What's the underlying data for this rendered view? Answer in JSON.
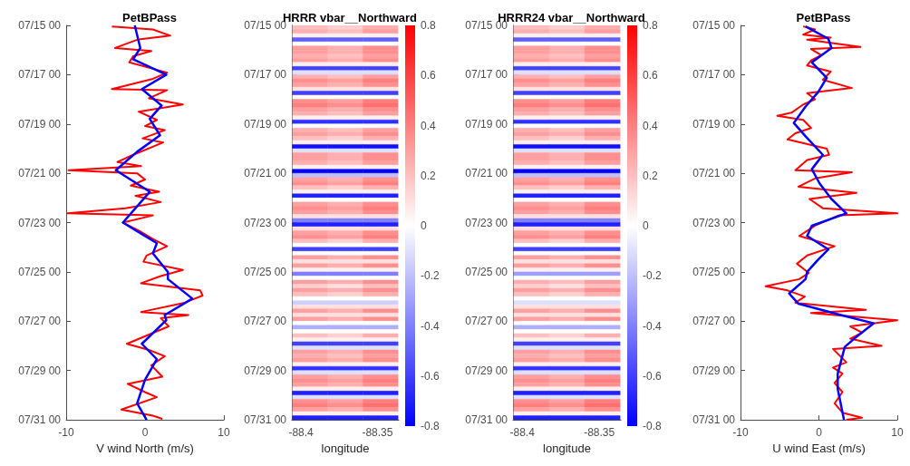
{
  "chart_data": [
    {
      "type": "line",
      "orientation": "horizontal",
      "title": "PetBPass",
      "xlabel": "V wind North (m/s)",
      "xlim": [
        -10,
        10
      ],
      "xticks": [
        -10,
        0,
        10
      ],
      "ylim": [
        "--07-31T00:00",
        "--07-15T00:00"
      ],
      "yticks": [
        {
          "value": "--07-15T00:00",
          "label": "07/15 00"
        },
        {
          "value": "--07-17T00:00",
          "label": "07/17 00"
        },
        {
          "value": "--07-19T00:00",
          "label": "07/19 00"
        },
        {
          "value": "--07-21T00:00",
          "label": "07/21 00"
        },
        {
          "value": "--07-23T00:00",
          "label": "07/23 00"
        },
        {
          "value": "--07-25T00:00",
          "label": "07/25 00"
        },
        {
          "value": "--07-27T00:00",
          "label": "07/27 00"
        },
        {
          "value": "--07-29T00:00",
          "label": "07/29 00"
        },
        {
          "value": "--07-31T00:00",
          "label": "07/31 00"
        }
      ],
      "series": [
        {
          "color": "#ff0000",
          "x": [
            "--07-15T01:00",
            "--07-15T04:00",
            "--07-15T10:00",
            "--07-15T14:00",
            "--07-15T22:00",
            "--07-16T01:00",
            "--07-16T06:00",
            "--07-16T12:00",
            "--07-16T22:00",
            "--07-17T04:00",
            "--07-17T14:00",
            "--07-17T15:00",
            "--07-17T23:00",
            "--07-18T05:00",
            "--07-18T12:00",
            "--07-18T20:00",
            "--07-19T02:00",
            "--07-19T06:00",
            "--07-19T14:00",
            "--07-19T18:00",
            "--07-20T06:00",
            "--07-20T13:00",
            "--07-20T17:00",
            "--07-20T21:00",
            "--07-21T00:00",
            "--07-21T06:00",
            "--07-21T12:00",
            "--07-21T18:00",
            "--07-21T22:00",
            "--07-22T04:00",
            "--07-22T10:00",
            "--07-22T15:00",
            "--07-22T17:00",
            "--07-23T00:00",
            "--07-23T09:00",
            "--07-23T16:00",
            "--07-23T23:00",
            "--07-24T08:00",
            "--07-24T14:00",
            "--07-24T22:00",
            "--07-25T04:00",
            "--07-25T11:00",
            "--07-25T18:00",
            "--07-25T23:00",
            "--07-26T06:00",
            "--07-26T15:00",
            "--07-26T18:00",
            "--07-26T21:00",
            "--07-27T05:00",
            "--07-27T22:00",
            "--07-28T04:00",
            "--07-28T10:00",
            "--07-28T19:00",
            "--07-29T06:00",
            "--07-29T13:00",
            "--07-29T21:00",
            "--07-30T02:00",
            "--07-30T14:00",
            "--07-30T20:00",
            "--07-30T23:00"
          ],
          "values": [
            -4.2,
            1.0,
            3.2,
            -1.0,
            -3.8,
            0.8,
            -1.5,
            -2.0,
            2.8,
            1.0,
            -4.2,
            2.8,
            0.5,
            4.8,
            -0.8,
            1.5,
            0.0,
            2.5,
            -0.3,
            2.3,
            -1.5,
            -3.5,
            -0.5,
            -9.7,
            -1.0,
            0.0,
            -1.8,
            1.8,
            -1.2,
            2.0,
            -2.5,
            -9.8,
            1.0,
            -2.8,
            -0.5,
            1.0,
            2.8,
            0.2,
            -0.2,
            4.8,
            2.0,
            -0.5,
            7.0,
            7.3,
            5.0,
            -0.5,
            5.5,
            2.0,
            3.0,
            -2.3,
            0.5,
            2.5,
            0.8,
            2.2,
            -2.2,
            0.0,
            1.5,
            -3.0,
            1.0,
            2.2
          ]
        },
        {
          "color": "#0000ff",
          "x": [
            "--07-15T00:00",
            "--07-15T22:00",
            "--07-16T09:00",
            "--07-17T00:00",
            "--07-17T14:00",
            "--07-18T06:00",
            "--07-18T19:00",
            "--07-19T11:00",
            "--07-20T03:00",
            "--07-20T21:00",
            "--07-21T18:00",
            "--07-23T00:00",
            "--07-23T20:00",
            "--07-24T06:00",
            "--07-25T00:00",
            "--07-25T07:00",
            "--07-26T02:00",
            "--07-26T18:00",
            "--07-26T23:00",
            "--07-27T22:00",
            "--07-28T13:00",
            "--07-29T09:00",
            "--07-30T08:00",
            "--07-31T00:00"
          ],
          "values": [
            -1.3,
            -0.6,
            -1.5,
            2.7,
            -0.4,
            2.1,
            0.6,
            1.9,
            -1.0,
            -3.7,
            0.6,
            -2.8,
            1.5,
            1.0,
            2.9,
            2.9,
            6.0,
            2.5,
            2.7,
            -0.4,
            1.5,
            0.0,
            -1.0,
            0.2
          ]
        }
      ]
    },
    {
      "type": "heatmap",
      "title": "HRRR vbar__Northward",
      "xlabel": "longitude",
      "xlim": [
        -88.406,
        -88.336
      ],
      "xticks": [
        -88.4,
        -88.35
      ],
      "ylim": [
        "--07-31T00:00",
        "--07-15T00:00"
      ],
      "yticks": [
        {
          "value": "--07-15T00:00",
          "label": "07/15 00"
        },
        {
          "value": "--07-17T00:00",
          "label": "07/17 00"
        },
        {
          "value": "--07-19T00:00",
          "label": "07/19 00"
        },
        {
          "value": "--07-21T00:00",
          "label": "07/21 00"
        },
        {
          "value": "--07-23T00:00",
          "label": "07/23 00"
        },
        {
          "value": "--07-25T00:00",
          "label": "07/25 00"
        },
        {
          "value": "--07-27T00:00",
          "label": "07/27 00"
        },
        {
          "value": "--07-29T00:00",
          "label": "07/29 00"
        },
        {
          "value": "--07-31T00:00",
          "label": "07/31 00"
        }
      ],
      "x": [
        -88.394,
        -88.371,
        -88.348
      ],
      "clim": [
        -0.8,
        0.8
      ],
      "cticks": [
        -0.8,
        -0.6,
        -0.4,
        -0.2,
        0,
        0.2,
        0.4,
        0.6,
        0.8
      ],
      "cells": [
        [
          0.2,
          0.15,
          0.25
        ],
        [
          0.25,
          0.2,
          0.3
        ],
        [
          0.05,
          0.05,
          0.05
        ],
        [
          -0.5,
          -0.5,
          -0.5
        ],
        [
          0,
          0,
          0
        ],
        [
          0.3,
          0.25,
          0.35
        ],
        [
          0.3,
          0.25,
          0.35
        ],
        [
          0.25,
          0.2,
          0.3
        ],
        [
          0.3,
          0.25,
          0.35
        ],
        [
          0.05,
          0.05,
          0.05
        ],
        [
          -0.6,
          -0.6,
          -0.6
        ],
        [
          -0.1,
          -0.1,
          -0.1
        ],
        [
          0.25,
          0.2,
          0.3
        ],
        [
          0.35,
          0.3,
          0.4
        ],
        [
          0.3,
          0.25,
          0.35
        ],
        [
          0.1,
          0.1,
          0.1
        ],
        [
          -0.6,
          -0.6,
          -0.6
        ],
        [
          0,
          0,
          0
        ],
        [
          0.35,
          0.3,
          0.4
        ],
        [
          0.4,
          0.35,
          0.45
        ],
        [
          0.3,
          0.25,
          0.35
        ],
        [
          0.25,
          0.2,
          0.3
        ],
        [
          0.05,
          0.05,
          0.05
        ],
        [
          -0.65,
          -0.65,
          -0.65
        ],
        [
          0,
          0,
          0
        ],
        [
          0.25,
          0.2,
          0.3
        ],
        [
          0.3,
          0.25,
          0.35
        ],
        [
          0.2,
          0.15,
          0.25
        ],
        [
          0.05,
          0.05,
          0.05
        ],
        [
          -0.75,
          -0.75,
          -0.75
        ],
        [
          -0.1,
          -0.1,
          -0.1
        ],
        [
          0.3,
          0.25,
          0.35
        ],
        [
          0.3,
          0.25,
          0.35
        ],
        [
          0.25,
          0.2,
          0.3
        ],
        [
          0.05,
          0.05,
          0.05
        ],
        [
          -0.8,
          -0.8,
          -0.8
        ],
        [
          -0.2,
          -0.2,
          -0.2
        ],
        [
          0.3,
          0.25,
          0.35
        ],
        [
          0.35,
          0.3,
          0.4
        ],
        [
          0.2,
          0.15,
          0.25
        ],
        [
          0.05,
          0.05,
          0.05
        ],
        [
          -0.7,
          -0.7,
          -0.7
        ],
        [
          0,
          0,
          0
        ],
        [
          0.3,
          0.25,
          0.35
        ],
        [
          0.35,
          0.3,
          0.4
        ],
        [
          0.3,
          0.25,
          0.35
        ],
        [
          0.1,
          0.1,
          0.1
        ],
        [
          -0.4,
          -0.4,
          -0.4
        ],
        [
          -0.7,
          -0.7,
          -0.7
        ],
        [
          0.1,
          0.1,
          0.1
        ],
        [
          0.3,
          0.25,
          0.35
        ],
        [
          0.35,
          0.3,
          0.4
        ],
        [
          0.2,
          0.15,
          0.25
        ],
        [
          0,
          0,
          0
        ],
        [
          -0.6,
          -0.6,
          -0.6
        ],
        [
          0,
          0,
          0
        ],
        [
          0.3,
          0.25,
          0.35
        ],
        [
          0.1,
          0.1,
          0.1
        ],
        [
          0.3,
          0.25,
          0.35
        ],
        [
          0.05,
          0.05,
          0.05
        ],
        [
          -0.4,
          -0.4,
          -0.4
        ],
        [
          0,
          0,
          0
        ],
        [
          0.3,
          0.25,
          0.35
        ],
        [
          0.15,
          0.1,
          0.2
        ],
        [
          0.3,
          0.25,
          0.35
        ],
        [
          0.2,
          0.15,
          0.25
        ],
        [
          0,
          0,
          0
        ],
        [
          -0.15,
          -0.15,
          -0.15
        ],
        [
          0.1,
          0.1,
          0.1
        ],
        [
          0.3,
          0.25,
          0.35
        ],
        [
          0.1,
          0.1,
          0.1
        ],
        [
          0.3,
          0.25,
          0.35
        ],
        [
          0,
          0,
          0
        ],
        [
          -0.25,
          -0.25,
          -0.25
        ],
        [
          0,
          0,
          0
        ],
        [
          0.2,
          0.15,
          0.25
        ],
        [
          0.05,
          0.05,
          0.05
        ],
        [
          -0.6,
          -0.6,
          -0.6
        ],
        [
          -0.1,
          -0.1,
          -0.1
        ],
        [
          0.3,
          0.25,
          0.35
        ],
        [
          0.25,
          0.2,
          0.3
        ],
        [
          0.3,
          0.25,
          0.35
        ],
        [
          0.05,
          0.05,
          0.05
        ],
        [
          -0.65,
          -0.65,
          -0.65
        ],
        [
          -0.1,
          -0.1,
          -0.1
        ],
        [
          0.3,
          0.25,
          0.35
        ],
        [
          0.35,
          0.3,
          0.4
        ],
        [
          0.3,
          0.25,
          0.35
        ],
        [
          0.05,
          0.05,
          0.05
        ],
        [
          -0.7,
          -0.7,
          -0.7
        ],
        [
          -0.1,
          -0.1,
          -0.1
        ],
        [
          0.35,
          0.3,
          0.4
        ],
        [
          0.4,
          0.35,
          0.45
        ],
        [
          0.3,
          0.25,
          0.35
        ],
        [
          0.05,
          0.05,
          0.05
        ],
        [
          -0.7,
          -0.7,
          -0.7
        ]
      ]
    },
    {
      "type": "heatmap",
      "title": "HRRR24 vbar__Northward",
      "xlabel": "longitude",
      "xlim": [
        -88.406,
        -88.336
      ],
      "xticks": [
        -88.4,
        -88.35
      ],
      "ylim": [
        "--07-31T00:00",
        "--07-15T00:00"
      ],
      "yticks": [
        {
          "value": "--07-15T00:00",
          "label": "07/15 00"
        },
        {
          "value": "--07-17T00:00",
          "label": "07/17 00"
        },
        {
          "value": "--07-19T00:00",
          "label": "07/19 00"
        },
        {
          "value": "--07-21T00:00",
          "label": "07/21 00"
        },
        {
          "value": "--07-23T00:00",
          "label": "07/23 00"
        },
        {
          "value": "--07-25T00:00",
          "label": "07/25 00"
        },
        {
          "value": "--07-27T00:00",
          "label": "07/27 00"
        },
        {
          "value": "--07-29T00:00",
          "label": "07/29 00"
        },
        {
          "value": "--07-31T00:00",
          "label": "07/31 00"
        }
      ],
      "x": [
        -88.394,
        -88.371,
        -88.348
      ],
      "clim": [
        -0.8,
        0.8
      ],
      "cticks": [
        -0.8,
        -0.6,
        -0.4,
        -0.2,
        0,
        0.2,
        0.4,
        0.6,
        0.8
      ],
      "cells": [
        [
          0.2,
          0.15,
          0.25
        ],
        [
          0.25,
          0.2,
          0.3
        ],
        [
          0.05,
          0.05,
          0.05
        ],
        [
          -0.5,
          -0.5,
          -0.5
        ],
        [
          0,
          0,
          0
        ],
        [
          0.3,
          0.25,
          0.35
        ],
        [
          0.3,
          0.25,
          0.35
        ],
        [
          0.25,
          0.2,
          0.3
        ],
        [
          0.3,
          0.25,
          0.35
        ],
        [
          0.05,
          0.05,
          0.05
        ],
        [
          -0.6,
          -0.6,
          -0.6
        ],
        [
          -0.1,
          -0.1,
          -0.1
        ],
        [
          0.25,
          0.2,
          0.3
        ],
        [
          0.35,
          0.3,
          0.4
        ],
        [
          0.3,
          0.25,
          0.35
        ],
        [
          0.1,
          0.1,
          0.1
        ],
        [
          -0.6,
          -0.6,
          -0.6
        ],
        [
          0,
          0,
          0
        ],
        [
          0.35,
          0.3,
          0.4
        ],
        [
          0.4,
          0.35,
          0.45
        ],
        [
          0.3,
          0.25,
          0.35
        ],
        [
          0.25,
          0.2,
          0.3
        ],
        [
          0.05,
          0.05,
          0.05
        ],
        [
          -0.65,
          -0.65,
          -0.65
        ],
        [
          0,
          0,
          0
        ],
        [
          0.25,
          0.2,
          0.3
        ],
        [
          0.3,
          0.25,
          0.35
        ],
        [
          0.2,
          0.15,
          0.25
        ],
        [
          0.05,
          0.05,
          0.05
        ],
        [
          -0.75,
          -0.75,
          -0.75
        ],
        [
          -0.1,
          -0.1,
          -0.1
        ],
        [
          0.3,
          0.25,
          0.35
        ],
        [
          0.3,
          0.25,
          0.35
        ],
        [
          0.25,
          0.2,
          0.3
        ],
        [
          0.05,
          0.05,
          0.05
        ],
        [
          -0.8,
          -0.8,
          -0.8
        ],
        [
          -0.2,
          -0.2,
          -0.2
        ],
        [
          0.3,
          0.25,
          0.35
        ],
        [
          0.35,
          0.3,
          0.4
        ],
        [
          0.2,
          0.15,
          0.25
        ],
        [
          0.05,
          0.05,
          0.05
        ],
        [
          -0.7,
          -0.7,
          -0.7
        ],
        [
          0,
          0,
          0
        ],
        [
          0.3,
          0.25,
          0.35
        ],
        [
          0.35,
          0.3,
          0.4
        ],
        [
          0.3,
          0.25,
          0.35
        ],
        [
          0.1,
          0.1,
          0.1
        ],
        [
          -0.4,
          -0.4,
          -0.4
        ],
        [
          -0.7,
          -0.7,
          -0.7
        ],
        [
          0.1,
          0.1,
          0.1
        ],
        [
          0.3,
          0.25,
          0.35
        ],
        [
          0.35,
          0.3,
          0.4
        ],
        [
          0.2,
          0.15,
          0.25
        ],
        [
          0,
          0,
          0
        ],
        [
          -0.6,
          -0.6,
          -0.6
        ],
        [
          0,
          0,
          0
        ],
        [
          0.3,
          0.25,
          0.35
        ],
        [
          0.1,
          0.1,
          0.1
        ],
        [
          0.3,
          0.25,
          0.35
        ],
        [
          0.05,
          0.05,
          0.05
        ],
        [
          -0.3,
          -0.3,
          -0.3
        ],
        [
          0,
          0,
          0
        ],
        [
          0.25,
          0.2,
          0.3
        ],
        [
          0.15,
          0.1,
          0.2
        ],
        [
          0.3,
          0.25,
          0.35
        ],
        [
          0.2,
          0.15,
          0.25
        ],
        [
          0,
          0,
          0
        ],
        [
          -0.1,
          -0.1,
          -0.1
        ],
        [
          0.1,
          0.1,
          0.1
        ],
        [
          0.3,
          0.25,
          0.35
        ],
        [
          0.1,
          0.1,
          0.1
        ],
        [
          0.3,
          0.25,
          0.35
        ],
        [
          0,
          0,
          0
        ],
        [
          -0.25,
          -0.25,
          -0.25
        ],
        [
          0,
          0,
          0
        ],
        [
          0.2,
          0.15,
          0.25
        ],
        [
          0.05,
          0.05,
          0.05
        ],
        [
          -0.6,
          -0.6,
          -0.6
        ],
        [
          -0.1,
          -0.1,
          -0.1
        ],
        [
          0.3,
          0.25,
          0.35
        ],
        [
          0.25,
          0.2,
          0.3
        ],
        [
          0.3,
          0.25,
          0.35
        ],
        [
          0.05,
          0.05,
          0.05
        ],
        [
          -0.65,
          -0.65,
          -0.65
        ],
        [
          -0.1,
          -0.1,
          -0.1
        ],
        [
          0.3,
          0.25,
          0.35
        ],
        [
          0.35,
          0.3,
          0.4
        ],
        [
          0.3,
          0.25,
          0.35
        ],
        [
          0.05,
          0.05,
          0.05
        ],
        [
          -0.7,
          -0.7,
          -0.7
        ],
        [
          -0.1,
          -0.1,
          -0.1
        ],
        [
          0.35,
          0.3,
          0.4
        ],
        [
          0.4,
          0.35,
          0.45
        ],
        [
          0.3,
          0.25,
          0.35
        ],
        [
          0.05,
          0.05,
          0.05
        ],
        [
          -0.7,
          -0.7,
          -0.7
        ]
      ]
    },
    {
      "type": "line",
      "orientation": "horizontal",
      "title": "PetBPass",
      "xlabel": "U wind East (m/s)",
      "xlim": [
        -10,
        10
      ],
      "xticks": [
        -10,
        0,
        10
      ],
      "ylim": [
        "--07-31T00:00",
        "--07-15T00:00"
      ],
      "yticks": [
        {
          "value": "--07-15T00:00",
          "label": "07/15 00"
        },
        {
          "value": "--07-17T00:00",
          "label": "07/17 00"
        },
        {
          "value": "--07-19T00:00",
          "label": "07/19 00"
        },
        {
          "value": "--07-21T00:00",
          "label": "07/21 00"
        },
        {
          "value": "--07-23T00:00",
          "label": "07/23 00"
        },
        {
          "value": "--07-25T00:00",
          "label": "07/25 00"
        },
        {
          "value": "--07-27T00:00",
          "label": "07/27 00"
        },
        {
          "value": "--07-29T00:00",
          "label": "07/29 00"
        },
        {
          "value": "--07-31T00:00",
          "label": "07/31 00"
        }
      ],
      "series": [
        {
          "color": "#ff0000",
          "x": [
            "--07-15T01:00",
            "--07-15T04:00",
            "--07-15T09:00",
            "--07-15T12:00",
            "--07-15T14:00",
            "--07-15T21:00",
            "--07-15T23:00",
            "--07-16T05:00",
            "--07-16T10:00",
            "--07-16T15:00",
            "--07-16T21:00",
            "--07-17T05:00",
            "--07-17T13:00",
            "--07-17T18:00",
            "--07-18T00:00",
            "--07-18T05:00",
            "--07-18T13:00",
            "--07-18T16:00",
            "--07-18T20:00",
            "--07-19T04:00",
            "--07-19T09:00",
            "--07-19T15:00",
            "--07-20T00:00",
            "--07-20T06:00",
            "--07-20T11:00",
            "--07-20T21:00",
            "--07-20T23:00",
            "--07-21T05:00",
            "--07-21T13:00",
            "--07-21T19:00",
            "--07-22T01:00",
            "--07-22T10:00",
            "--07-22T15:00",
            "--07-22T17:00",
            "--07-23T03:00",
            "--07-23T13:00",
            "--07-23T23:00",
            "--07-24T08:00",
            "--07-24T16:00",
            "--07-25T01:00",
            "--07-25T07:00",
            "--07-25T14:00",
            "--07-25T18:00",
            "--07-26T00:00",
            "--07-26T06:00",
            "--07-26T13:00",
            "--07-26T16:00",
            "--07-26T23:00",
            "--07-27T05:00",
            "--07-27T11:00",
            "--07-27T17:00",
            "--07-28T00:00",
            "--07-28T03:00",
            "--07-28T16:00",
            "--07-28T21:00",
            "--07-29T03:00",
            "--07-29T12:00",
            "--07-29T21:00",
            "--07-30T08:00",
            "--07-30T17:00",
            "--07-30T22:00",
            "--07-31T00:00"
          ],
          "values": [
            -2.0,
            -0.5,
            -2.0,
            1.5,
            -1.5,
            5.3,
            -1.0,
            0.3,
            -1.0,
            -1.5,
            1.5,
            0.5,
            4.2,
            -1.5,
            -0.5,
            -2.0,
            -3.5,
            -5.3,
            -2.0,
            -1.0,
            -3.0,
            -4.0,
            1.0,
            1.3,
            -1.5,
            -3.0,
            4.2,
            -0.5,
            -2.6,
            4.8,
            -1.2,
            0.5,
            10.0,
            2.5,
            -0.5,
            -2.5,
            2.0,
            -1.5,
            -2.8,
            -1.3,
            -2.5,
            -6.8,
            -4.0,
            -1.8,
            -3.0,
            6.0,
            -1.0,
            10.0,
            4.0,
            5.5,
            4.0,
            8.0,
            1.8,
            3.5,
            1.8,
            3.0,
            2.0,
            3.0,
            2.0,
            3.0,
            5.5,
            3.5
          ]
        },
        {
          "color": "#0000ff",
          "x": [
            "--07-15T01:00",
            "--07-15T13:00",
            "--07-15T22:00",
            "--07-16T12:00",
            "--07-17T03:00",
            "--07-17T17:00",
            "--07-18T07:00",
            "--07-18T23:00",
            "--07-19T12:00",
            "--07-20T06:00",
            "--07-20T20:00",
            "--07-21T10:00",
            "--07-22T01:00",
            "--07-22T15:00",
            "--07-23T03:00",
            "--07-23T13:00",
            "--07-24T02:00",
            "--07-24T12:00",
            "--07-25T00:00",
            "--07-25T07:00",
            "--07-25T21:00",
            "--07-26T07:00",
            "--07-26T18:00",
            "--07-27T02:00",
            "--07-27T17:00",
            "--07-28T01:00",
            "--07-29T03:00",
            "--07-29T18:00",
            "--07-31T00:00"
          ],
          "values": [
            -1.7,
            1.2,
            1.6,
            -0.9,
            1.0,
            -0.1,
            -1.7,
            -3.2,
            -1.7,
            0.5,
            -0.9,
            0.1,
            1.6,
            3.5,
            -0.9,
            -1.5,
            1.2,
            -0.1,
            -1.5,
            -1.7,
            -3.8,
            -2.6,
            2.8,
            7.0,
            4.5,
            3.3,
            2.4,
            2.4,
            3.2
          ]
        }
      ]
    }
  ]
}
